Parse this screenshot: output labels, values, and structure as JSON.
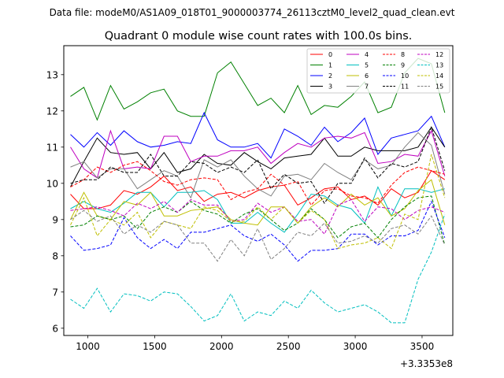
{
  "suptitle": "Data file: modeM0/AS1A09_018T01_9000003774_26113cztM0_level2_quad_clean.evt",
  "chart_data": {
    "type": "line",
    "title": "Quadrant 0 module wise count rates with 100.0s bins.",
    "xlabel": "",
    "ylabel": "",
    "x_offset_label": "+3.3353e8",
    "xlim": [
      820,
      3730
    ],
    "ylim": [
      5.8,
      13.8
    ],
    "xticks": [
      1000,
      1500,
      2000,
      2500,
      3000,
      3500
    ],
    "xtick_labels": [
      "1000",
      "1500",
      "2000",
      "2500",
      "3000",
      "3500"
    ],
    "yticks": [
      6,
      7,
      8,
      9,
      10,
      11,
      12,
      13
    ],
    "ytick_labels": [
      "6",
      "7",
      "8",
      "9",
      "10",
      "11",
      "12",
      "13"
    ],
    "legend_position": "top-right",
    "legend_columns": 4,
    "x": [
      870,
      970,
      1070,
      1170,
      1270,
      1370,
      1470,
      1570,
      1670,
      1770,
      1870,
      1970,
      2070,
      2170,
      2270,
      2370,
      2470,
      2570,
      2670,
      2770,
      2870,
      2970,
      3070,
      3170,
      3270,
      3370,
      3470,
      3570,
      3670
    ],
    "series": [
      {
        "name": "0",
        "color": "#ff0000",
        "dash": "solid",
        "values": [
          9.7,
          9.3,
          9.3,
          9.4,
          9.8,
          9.7,
          9.9,
          10.2,
          9.8,
          9.9,
          9.5,
          9.7,
          9.75,
          9.6,
          9.8,
          9.9,
          9.95,
          9.4,
          9.6,
          9.85,
          9.9,
          9.55,
          9.65,
          9.4,
          9.85,
          9.6,
          9.75,
          10.35,
          10.1
        ]
      },
      {
        "name": "1",
        "color": "#008000",
        "dash": "solid",
        "values": [
          12.4,
          12.65,
          11.75,
          12.7,
          12.05,
          12.25,
          12.5,
          12.6,
          12.0,
          11.85,
          11.85,
          13.05,
          13.35,
          12.75,
          12.15,
          12.35,
          11.95,
          12.7,
          11.9,
          12.15,
          12.1,
          12.4,
          12.8,
          11.95,
          12.1,
          13.05,
          13.45,
          13.3,
          11.95
        ]
      },
      {
        "name": "2",
        "color": "#0000ff",
        "dash": "solid",
        "values": [
          11.35,
          11.0,
          11.4,
          11.05,
          11.45,
          11.15,
          11.0,
          11.05,
          11.15,
          11.1,
          11.95,
          11.2,
          11.0,
          11.0,
          11.1,
          10.7,
          11.5,
          11.3,
          11.05,
          11.55,
          11.15,
          11.4,
          11.8,
          10.8,
          11.25,
          11.35,
          11.45,
          11.85,
          11.0
        ]
      },
      {
        "name": "3",
        "color": "#000000",
        "dash": "solid",
        "values": [
          9.9,
          10.6,
          11.25,
          10.85,
          10.8,
          10.85,
          10.4,
          10.85,
          10.3,
          10.4,
          10.8,
          10.55,
          10.5,
          10.85,
          10.6,
          10.4,
          10.7,
          10.75,
          10.8,
          11.25,
          10.75,
          10.75,
          11.0,
          10.9,
          10.9,
          10.9,
          11.0,
          11.55,
          11.0
        ]
      },
      {
        "name": "4",
        "color": "#bf00bf",
        "dash": "solid",
        "values": [
          11.0,
          10.4,
          10.15,
          11.45,
          10.4,
          10.45,
          10.4,
          11.3,
          11.3,
          10.6,
          10.75,
          10.75,
          10.9,
          10.9,
          11.0,
          10.55,
          10.85,
          11.1,
          11.0,
          11.25,
          11.3,
          11.25,
          11.4,
          10.55,
          10.6,
          10.8,
          10.75,
          11.45,
          10.2
        ]
      },
      {
        "name": "5",
        "color": "#00bfbf",
        "dash": "solid",
        "values": [
          9.3,
          9.5,
          9.3,
          9.2,
          9.45,
          9.75,
          9.75,
          9.35,
          9.75,
          9.75,
          9.8,
          9.55,
          8.9,
          8.9,
          9.2,
          8.9,
          8.65,
          9.15,
          9.7,
          9.65,
          9.4,
          9.3,
          8.9,
          9.9,
          9.1,
          9.85,
          9.85,
          9.75,
          9.85
        ]
      },
      {
        "name": "6",
        "color": "#bfbf00",
        "dash": "solid",
        "values": [
          9.0,
          9.75,
          9.1,
          9.0,
          9.5,
          9.4,
          9.75,
          9.1,
          9.1,
          9.25,
          9.3,
          9.35,
          9.0,
          8.9,
          8.85,
          9.35,
          9.35,
          8.9,
          9.35,
          9.6,
          9.35,
          9.7,
          9.4,
          9.6,
          9.1,
          9.3,
          9.8,
          10.1,
          8.85
        ]
      },
      {
        "name": "7",
        "color": "#808080",
        "dash": "solid",
        "values": [
          10.45,
          10.6,
          10.15,
          10.4,
          10.4,
          9.85,
          10.1,
          10.35,
          10.2,
          9.6,
          10.65,
          10.45,
          10.65,
          10.2,
          9.85,
          9.65,
          10.2,
          10.25,
          10.1,
          10.55,
          10.3,
          10.1,
          10.65,
          10.4,
          10.5,
          11.0,
          11.4,
          11.05,
          9.7
        ]
      },
      {
        "name": "8",
        "color": "#ff0000",
        "dash": "dashed",
        "values": [
          9.9,
          10.1,
          10.45,
          10.3,
          10.5,
          10.6,
          10.35,
          10.05,
          9.95,
          10.1,
          10.15,
          10.1,
          9.55,
          9.75,
          9.85,
          10.25,
          9.95,
          10.05,
          9.4,
          9.8,
          9.85,
          9.65,
          9.6,
          9.45,
          9.95,
          10.3,
          10.45,
          10.35,
          10.25
        ]
      },
      {
        "name": "9",
        "color": "#008000",
        "dash": "dashed",
        "values": [
          8.8,
          8.85,
          9.1,
          9.0,
          9.1,
          8.75,
          9.2,
          9.35,
          9.2,
          9.5,
          9.25,
          9.15,
          8.9,
          9.15,
          9.3,
          9.0,
          8.7,
          8.9,
          9.3,
          9.0,
          8.5,
          8.8,
          8.9,
          8.5,
          9.0,
          9.35,
          9.6,
          9.65,
          8.3
        ]
      },
      {
        "name": "10",
        "color": "#0000ff",
        "dash": "dashed",
        "values": [
          8.55,
          8.15,
          8.2,
          8.3,
          9.05,
          8.5,
          8.2,
          8.45,
          8.2,
          8.65,
          8.65,
          8.75,
          8.85,
          8.55,
          8.4,
          8.6,
          8.3,
          7.85,
          8.15,
          8.15,
          8.2,
          8.6,
          8.6,
          8.3,
          8.55,
          8.55,
          8.7,
          9.5,
          8.5
        ]
      },
      {
        "name": "11",
        "color": "#000000",
        "dash": "dashed",
        "values": [
          10.0,
          10.1,
          10.1,
          10.45,
          10.3,
          10.3,
          10.8,
          10.2,
          10.2,
          10.6,
          10.55,
          10.3,
          10.45,
          10.3,
          10.65,
          9.85,
          10.25,
          10.0,
          10.05,
          9.45,
          10.0,
          10.0,
          10.7,
          10.15,
          10.55,
          10.45,
          10.6,
          11.55,
          10.35
        ]
      },
      {
        "name": "12",
        "color": "#bf00bf",
        "dash": "dashed",
        "values": [
          9.25,
          9.3,
          9.35,
          9.25,
          9.1,
          9.45,
          9.3,
          9.5,
          9.2,
          9.55,
          9.4,
          9.4,
          8.95,
          9.0,
          9.45,
          9.2,
          9.35,
          8.95,
          9.0,
          8.6,
          9.4,
          9.55,
          8.95,
          9.35,
          9.3,
          9.0,
          9.25,
          9.35,
          9.2
        ]
      },
      {
        "name": "13",
        "color": "#00bfbf",
        "dash": "dashed",
        "values": [
          6.8,
          6.55,
          7.1,
          6.45,
          6.95,
          6.9,
          6.75,
          7.0,
          6.95,
          6.6,
          6.2,
          6.35,
          6.95,
          6.2,
          6.45,
          6.35,
          6.75,
          6.55,
          7.05,
          6.7,
          6.45,
          6.55,
          6.65,
          6.45,
          6.15,
          6.15,
          7.35,
          8.1,
          9.15
        ]
      },
      {
        "name": "14",
        "color": "#bfbf00",
        "dash": "dashed",
        "values": [
          8.85,
          9.6,
          8.55,
          9.0,
          8.85,
          9.2,
          8.5,
          8.95,
          8.85,
          8.75,
          9.35,
          9.25,
          8.95,
          8.95,
          9.35,
          9.0,
          9.35,
          8.9,
          9.25,
          9.0,
          8.2,
          8.3,
          8.35,
          8.5,
          8.2,
          9.15,
          9.0,
          10.8,
          9.6
        ]
      },
      {
        "name": "15",
        "color": "#808080",
        "dash": "dashed",
        "values": [
          9.0,
          9.25,
          8.95,
          9.1,
          8.6,
          8.85,
          8.65,
          8.95,
          8.85,
          8.35,
          8.35,
          7.85,
          8.45,
          8.0,
          8.75,
          7.9,
          8.2,
          8.65,
          8.55,
          8.9,
          8.35,
          8.4,
          8.55,
          8.35,
          8.75,
          8.85,
          8.6,
          9.1,
          8.3
        ]
      }
    ]
  }
}
